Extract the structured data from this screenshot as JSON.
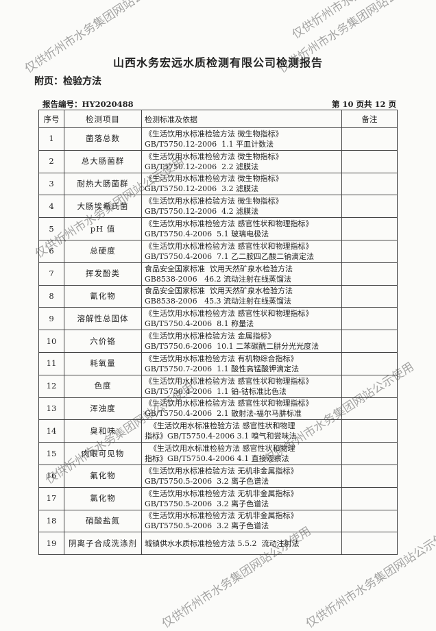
{
  "header": {
    "title": "山西水务宏远水质检测有限公司检测报告",
    "subtitle": "附页：检验方法",
    "report_no": "报告编号：HY2020488",
    "page_info": "第 10 页共 12 页"
  },
  "table": {
    "columns": [
      "序号",
      "检测项目",
      "检测标准及依据",
      "备注"
    ],
    "rows": [
      {
        "no": "1",
        "item": "菌落总数",
        "std1": "《生活饮用水标准检验方法 微生物指标》",
        "std2": "GB/T5750.12-2006  1.1 平皿计数法",
        "note": ""
      },
      {
        "no": "2",
        "item": "总大肠菌群",
        "std1": "《生活饮用水标准检验方法 微生物指标》",
        "std2": "GB/T5750.12-2006  2.2 滤膜法",
        "note": ""
      },
      {
        "no": "3",
        "item": "耐热大肠菌群",
        "std1": "《生活饮用水标准检验方法 微生物指标》",
        "std2": "GB/T5750.12-2006  3.2 滤膜法",
        "note": ""
      },
      {
        "no": "4",
        "item": "大肠埃希氏菌",
        "std1": "《生活饮用水标准检验方法 微生物指标》",
        "std2": "GB/T5750.12-2006  4.2 滤膜法",
        "note": ""
      },
      {
        "no": "5",
        "item": "pH 值",
        "std1": "《生活饮用水标准检验方法 感官性状和物理指标》",
        "std2": "GB/T5750.4-2006  5.1 玻璃电极法",
        "note": ""
      },
      {
        "no": "6",
        "item": "总硬度",
        "std1": "《生活饮用水标准检验方法 感官性状和物理指标》",
        "std2": "GB/T5750.4-2006  7.1 乙二胺四乙酸二钠滴定法",
        "note": ""
      },
      {
        "no": "7",
        "item": "挥发酚类",
        "std1": "食品安全国家标准  饮用天然矿泉水检验方法",
        "std2": "GB8538-2006   46.2 流动注射在线蒸馏法",
        "note": ""
      },
      {
        "no": "8",
        "item": "氰化物",
        "std1": "食品安全国家标准  饮用天然矿泉水检验方法",
        "std2": "GB8538-2006   45.3 流动注射在线蒸馏法",
        "note": ""
      },
      {
        "no": "9",
        "item": "溶解性总固体",
        "std1": "《生活饮用水标准检验方法 感官性状和物理指标》",
        "std2": "GB/T5750.4-2006  8.1 称量法",
        "note": ""
      },
      {
        "no": "10",
        "item": "六价铬",
        "std1": "《生活饮用水标准检验方法 金属指标》",
        "std2": "GB/T5750.6-2006  10.1 二苯碳酰二肼分光光度法",
        "note": ""
      },
      {
        "no": "11",
        "item": "耗氧量",
        "std1": "《生活饮用水标准检验方法 有机物综合指标》",
        "std2": "GB/T5750.7-2006  1.1 酸性高锰酸钾滴定法",
        "note": ""
      },
      {
        "no": "12",
        "item": "色度",
        "std1": "《生活饮用水标准检验方法 感官性状和物理指标》",
        "std2": "GB/T5750.4-2006  1.1 铂-钴标准比色法",
        "note": ""
      },
      {
        "no": "13",
        "item": "浑浊度",
        "std1": "《生活饮用水标准检验方法 感官性状和物理指标》",
        "std2": "GB/T5750.4-2006  2.1 散射法-福尔马肼标准",
        "note": ""
      },
      {
        "no": "14",
        "item": "臭和味",
        "std1": "  《生活饮用水标准检验方法 感官性状和物理",
        "std2": "指标》GB/T5750.4-2006 3.1 嗅气和尝味法",
        "note": ""
      },
      {
        "no": "15",
        "item": "肉眼可见物",
        "std1": "  《生活饮用水标准检验方法 感官性状和物理",
        "std2": "指标》GB/T5750.4-2006 4.1 直接观察法",
        "note": ""
      },
      {
        "no": "16",
        "item": "氟化物",
        "std1": "《生活饮用水标准检验方法 无机非金属指标》",
        "std2": "GB/T5750.5-2006  3.2 离子色谱法",
        "note": ""
      },
      {
        "no": "17",
        "item": "氯化物",
        "std1": "《生活饮用水标准检验方法 无机非金属指标》",
        "std2": "GB/T5750.5-2006  3.2 离子色谱法",
        "note": ""
      },
      {
        "no": "18",
        "item": "硝酸盐氮",
        "std1": "《生活饮用水标准检验方法 无机非金属指标》",
        "std2": "GB/T5750.5-2006  3.2 离子色谱法",
        "note": ""
      },
      {
        "no": "19",
        "item": "阴离子合成洗涤剂",
        "std1": "城镇供水水质标准检验方法 5.5.2  流动注射法",
        "std2": "",
        "note": ""
      }
    ]
  },
  "watermark": "仅供忻州市水务集团网站公示使用"
}
